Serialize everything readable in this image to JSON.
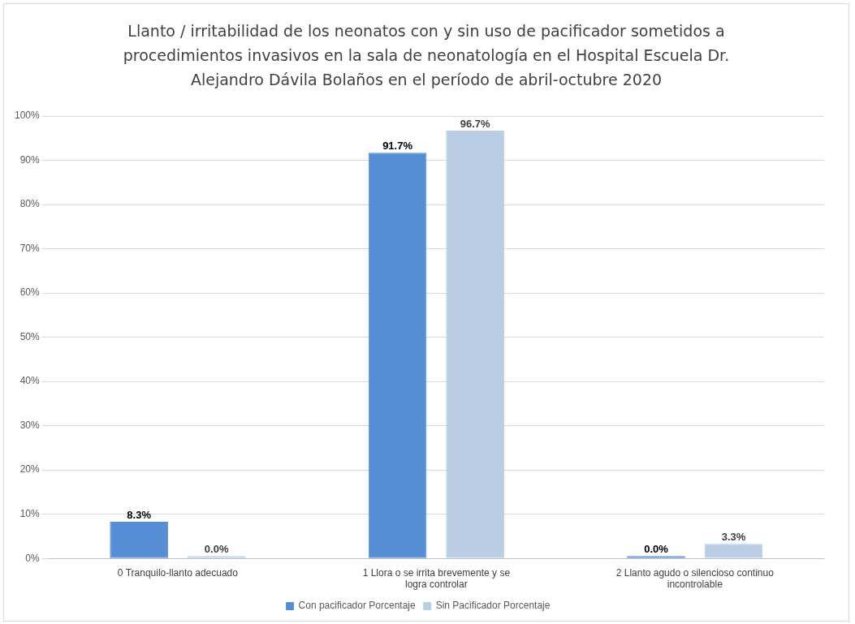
{
  "chart_data": {
    "type": "bar",
    "title": "Llanto / irritabilidad de los neonatos con y sin uso de pacificador sometidos a procedimientos invasivos en la sala de neonatología en el Hospital Escuela Dr. Alejandro Dávila Bolaños en el período de abril-octubre 2020",
    "categories": [
      "0 Tranquilo-llanto adecuado",
      "1 Llora o se irrita brevemente y se logra controlar",
      "2 Llanto agudo o silencioso continuo incontrolable"
    ],
    "series": [
      {
        "name": "Con pacificador Porcentaje",
        "color": "#558ed5",
        "values": [
          8.3,
          91.7,
          0.0
        ],
        "value_labels": [
          "8.3%",
          "91.7%",
          "0.0%"
        ]
      },
      {
        "name": "Sin Pacificador Porcentaje",
        "color": "#b9cde5",
        "values": [
          0.0,
          96.7,
          3.3
        ],
        "value_labels": [
          "0.0%",
          "96.7%",
          "3.3%"
        ]
      }
    ],
    "ylim": [
      0,
      100
    ],
    "yticks": [
      {
        "value": 0,
        "label": "0%"
      },
      {
        "value": 10,
        "label": "10%"
      },
      {
        "value": 20,
        "label": "20%"
      },
      {
        "value": 30,
        "label": "30%"
      },
      {
        "value": 40,
        "label": "40%"
      },
      {
        "value": 50,
        "label": "50%"
      },
      {
        "value": 60,
        "label": "60%"
      },
      {
        "value": 70,
        "label": "70%"
      },
      {
        "value": 80,
        "label": "80%"
      },
      {
        "value": 90,
        "label": "90%"
      },
      {
        "value": 100,
        "label": "100%"
      }
    ],
    "grid": "y",
    "legend": "bottom"
  }
}
